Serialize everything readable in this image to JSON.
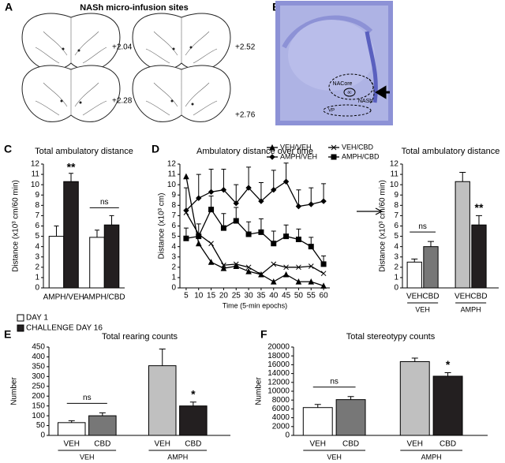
{
  "panel_a": {
    "label": "A",
    "title": "NASh micro-infusion sites",
    "levels": [
      "+2.04",
      "+2.28",
      "+2.52",
      "+2.76"
    ]
  },
  "panel_b": {
    "label": "B",
    "regions": [
      "NACore",
      "ac",
      "NASh",
      "VP"
    ]
  },
  "chart_data": [
    {
      "panel": "C",
      "type": "bar",
      "title": "Total ambulatory distance",
      "y_label": "Distance (x10³ cm/60 min)",
      "categories": [
        "AMPH/VEH",
        "AMPH/CBD"
      ],
      "series": [
        {
          "name": "DAY 1",
          "color": "#ffffff",
          "values": [
            5,
            4.9
          ],
          "errors": [
            1,
            0.7
          ]
        },
        {
          "name": "CHALLENGE DAY 16",
          "color": "#231f20",
          "values": [
            10.3,
            6.1
          ],
          "errors": [
            0.8,
            0.9
          ],
          "markers": [
            "**",
            null
          ]
        }
      ],
      "bracket_label": "ns",
      "ylim": [
        0,
        12
      ],
      "yticks": [
        0,
        1,
        2,
        3,
        4,
        5,
        6,
        7,
        8,
        9,
        10,
        11,
        12
      ]
    },
    {
      "panel": "D",
      "type": "line",
      "title": "Ambulatory distance over time",
      "x_label": "Time (5-min epochs)",
      "y_label": "Distance (x10³ cm)",
      "x": [
        5,
        10,
        15,
        20,
        25,
        30,
        35,
        40,
        45,
        50,
        55,
        60
      ],
      "series": [
        {
          "name": "VEH/VEH",
          "color": "#000000",
          "marker": "triangle",
          "values": [
            10.8,
            4.3,
            2.5,
            1.9,
            2.1,
            1.6,
            1.3,
            0.6,
            1.3,
            0.6,
            0.6,
            0.2
          ]
        },
        {
          "name": "VEH/CBD",
          "color": "#000000",
          "marker": "x",
          "values": [
            7.3,
            5.2,
            4.3,
            2.2,
            2.3,
            2.0,
            1.3,
            2.3,
            2.0,
            2.0,
            2.1,
            1.4
          ]
        },
        {
          "name": "AMPH/VEH",
          "color": "#000000",
          "marker": "diamond",
          "values": [
            7.5,
            8.7,
            9.3,
            9.5,
            8.2,
            9.7,
            8.4,
            9.5,
            10.3,
            7.9,
            8.1,
            8.4
          ],
          "errors": [
            2.2,
            2.3,
            2.2,
            2.0,
            1.8,
            2.0,
            1.8,
            1.9,
            1.8,
            1.6,
            1.6,
            1.7
          ]
        },
        {
          "name": "AMPH/CBD",
          "color": "#000000",
          "marker": "square",
          "values": [
            4.8,
            5.0,
            7.6,
            5.8,
            6.5,
            5.2,
            5.4,
            4.3,
            5.0,
            4.7,
            4.0,
            2.3
          ],
          "errors": [
            1.0,
            1.2,
            1.3,
            1.4,
            1.3,
            1.2,
            1.3,
            1.2,
            1.1,
            1.0,
            0.9,
            0.8
          ]
        }
      ],
      "xlim": [
        2.5,
        62.5
      ],
      "xticks": [
        5,
        10,
        15,
        20,
        25,
        30,
        35,
        40,
        45,
        50,
        55,
        60
      ],
      "ylim": [
        0,
        12
      ],
      "yticks": [
        0,
        1,
        2,
        3,
        4,
        5,
        6,
        7,
        8,
        9,
        10,
        11,
        12
      ]
    },
    {
      "type": "bar",
      "title": "Total ambulatory distance",
      "y_label": "Distance (x10³ cm/60 min)",
      "categories": [
        "VEH",
        "CBD",
        "VEH",
        "CBD"
      ],
      "group_labels": [
        "VEH",
        "AMPH"
      ],
      "values": [
        2.5,
        4,
        10.3,
        6.1
      ],
      "errors": [
        0.3,
        0.5,
        0.9,
        0.9
      ],
      "markers": [
        null,
        null,
        null,
        "**"
      ],
      "colors": [
        "#ffffff",
        "#777777",
        "#c0c0c0",
        "#231f20"
      ],
      "bracket_label": "ns",
      "ylim": [
        0,
        12
      ],
      "yticks": [
        0,
        1,
        2,
        3,
        4,
        5,
        6,
        7,
        8,
        9,
        10,
        11,
        12
      ]
    },
    {
      "panel": "E",
      "type": "bar",
      "title": "Total rearing counts",
      "y_label": "Number",
      "categories": [
        "VEH",
        "CBD",
        "VEH",
        "CBD"
      ],
      "group_labels": [
        "VEH",
        "AMPH"
      ],
      "values": [
        65,
        100,
        355,
        150
      ],
      "errors": [
        10,
        15,
        85,
        20
      ],
      "markers": [
        null,
        null,
        null,
        "*"
      ],
      "colors": [
        "#ffffff",
        "#777777",
        "#c0c0c0",
        "#231f20"
      ],
      "bracket_label": "ns",
      "ylim": [
        0,
        450
      ],
      "yticks": [
        0,
        50,
        100,
        150,
        200,
        250,
        300,
        350,
        400,
        450
      ]
    },
    {
      "panel": "F",
      "type": "bar",
      "title": "Total stereotypy counts",
      "y_label": "Number",
      "categories": [
        "VEH",
        "CBD",
        "VEH",
        "CBD"
      ],
      "group_labels": [
        "VEH",
        "AMPH"
      ],
      "values": [
        6300,
        8100,
        16700,
        13400
      ],
      "errors": [
        700,
        700,
        800,
        800
      ],
      "markers": [
        null,
        null,
        null,
        "*"
      ],
      "colors": [
        "#ffffff",
        "#777777",
        "#c0c0c0",
        "#231f20"
      ],
      "bracket_label": "ns",
      "ylim": [
        0,
        20000
      ],
      "yticks": [
        0,
        2000,
        4000,
        6000,
        8000,
        10000,
        12000,
        14000,
        16000,
        18000,
        20000
      ]
    }
  ]
}
